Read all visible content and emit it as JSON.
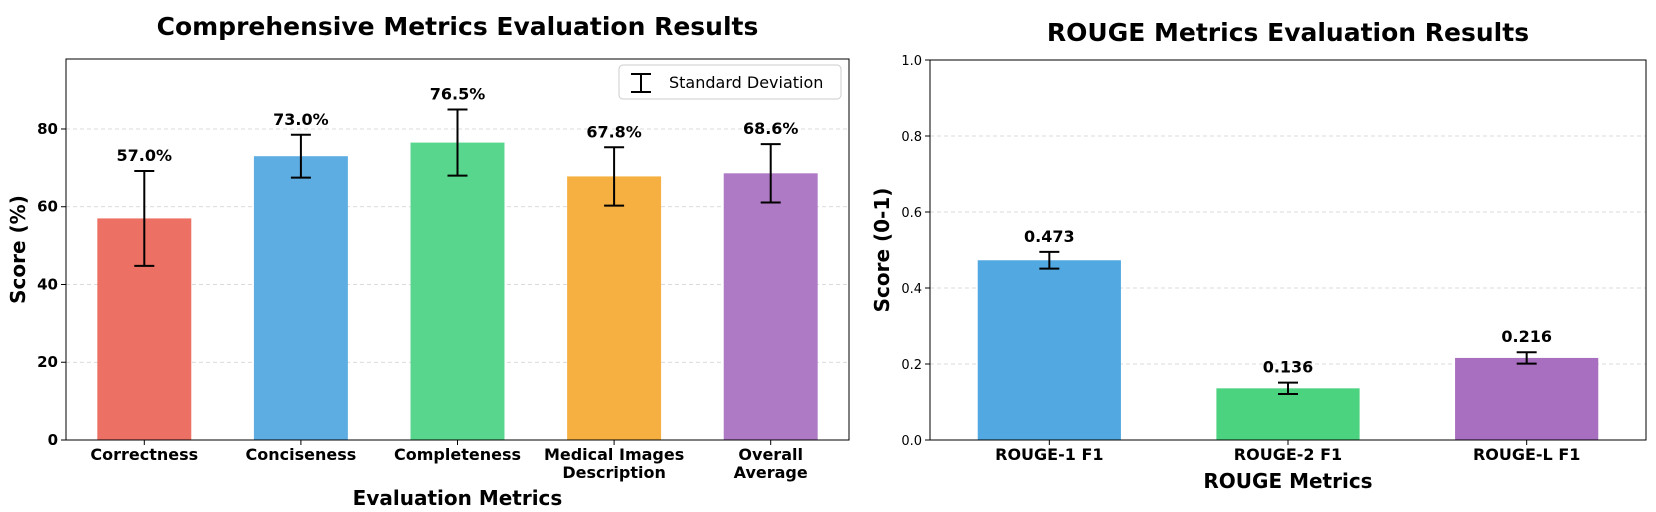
{
  "chart_data": [
    {
      "type": "bar",
      "title": "Comprehensive Metrics Evaluation Results",
      "xlabel": "Evaluation Metrics",
      "ylabel": "Score (%)",
      "ylim": [
        0,
        98
      ],
      "yticks": [
        0,
        20,
        40,
        60,
        80
      ],
      "grid": true,
      "categories": [
        [
          "Correctness"
        ],
        [
          "Conciseness"
        ],
        [
          "Completeness"
        ],
        [
          "Medical Images",
          "Description"
        ],
        [
          "Overall",
          "Average"
        ]
      ],
      "values": [
        57.0,
        73.0,
        76.5,
        67.8,
        68.6
      ],
      "errors": [
        12.2,
        5.5,
        8.5,
        7.5,
        7.5
      ],
      "value_labels": [
        "57.0%",
        "73.0%",
        "76.5%",
        "67.8%",
        "68.6%"
      ],
      "colors": [
        "#ec7063",
        "#5dade2",
        "#58d68d",
        "#f5b041",
        "#af7ac5"
      ],
      "legend": {
        "label": "Standard Deviation",
        "position": "top-right"
      }
    },
    {
      "type": "bar",
      "title": "ROUGE Metrics Evaluation Results",
      "xlabel": "ROUGE Metrics",
      "ylabel": "Score (0-1)",
      "ylim": [
        0,
        1.0
      ],
      "yticks": [
        "0.0",
        "0.2",
        "0.4",
        "0.6",
        "0.8",
        "1.0"
      ],
      "grid": true,
      "categories": [
        [
          "ROUGE-1 F1"
        ],
        [
          "ROUGE-2 F1"
        ],
        [
          "ROUGE-L F1"
        ]
      ],
      "values": [
        0.473,
        0.136,
        0.216
      ],
      "errors": [
        0.022,
        0.015,
        0.015
      ],
      "value_labels": [
        "0.473",
        "0.136",
        "0.216"
      ],
      "colors": [
        "#52a8e0",
        "#4cd37f",
        "#a86ebf"
      ]
    }
  ]
}
